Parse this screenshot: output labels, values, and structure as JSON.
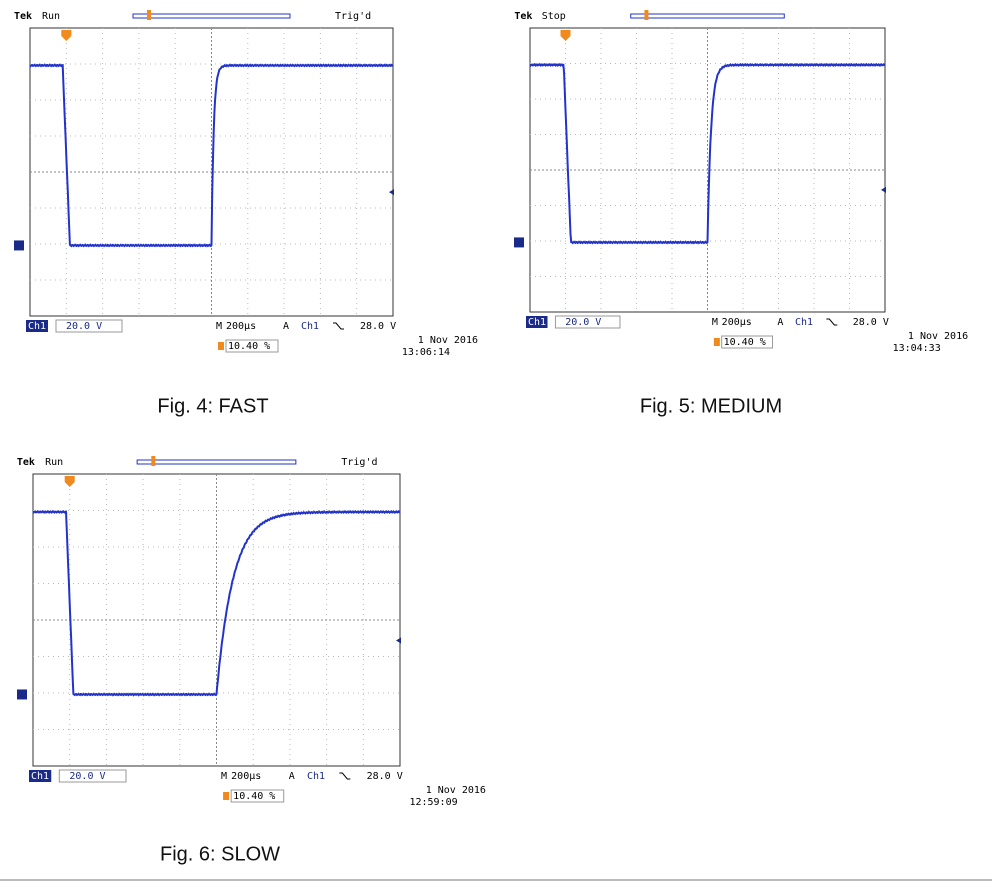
{
  "figures": [
    {
      "brand": "Tek",
      "status": "Run",
      "trigger_state": "Trig'd",
      "channel": "Ch1",
      "volts": "20.0 V",
      "timebase_prefix": "M",
      "timebase": "200µs",
      "trigger_prefix": "A",
      "trigger_channel": "Ch1",
      "trigger_level": "28.0 V",
      "position": "10.40 %",
      "date": "1 Nov 2016",
      "time": "13:06:14",
      "caption": "Fig. 4: FAST"
    },
    {
      "brand": "Tek",
      "status": "Stop",
      "channel": "Ch1",
      "volts": "20.0 V",
      "timebase_prefix": "M",
      "timebase": "200µs",
      "trigger_prefix": "A",
      "trigger_channel": "Ch1",
      "trigger_level": "28.0 V",
      "position": "10.40 %",
      "date": "1 Nov 2016",
      "time": "13:04:33",
      "caption": "Fig. 5: MEDIUM"
    },
    {
      "brand": "Tek",
      "status": "Run",
      "trigger_state": "Trig'd",
      "channel": "Ch1",
      "volts": "20.0 V",
      "timebase_prefix": "M",
      "timebase": "200µs",
      "trigger_prefix": "A",
      "trigger_channel": "Ch1",
      "trigger_level": "28.0 V",
      "position": "10.40 %",
      "date": "1 Nov 2016",
      "time": "12:59:09",
      "caption": "Fig. 6: SLOW"
    }
  ]
}
